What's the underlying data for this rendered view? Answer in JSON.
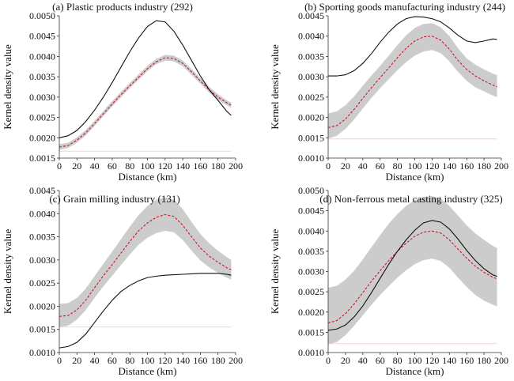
{
  "colors": {
    "band": "#cccccc",
    "observed": "#111111",
    "expected": "#d0021b",
    "axis": "#333333"
  },
  "chart_data": [
    {
      "type": "line",
      "title": "(a) Plastic products industry (292)",
      "xlabel": "Distance (km)",
      "ylabel": "Kernel density value",
      "xlim": [
        0,
        200
      ],
      "ylim": [
        0.0015,
        0.005
      ],
      "xticks": [
        "0",
        "20",
        "40",
        "60",
        "80",
        "100",
        "120",
        "140",
        "160",
        "180",
        "200"
      ],
      "yticks": [
        "0.0015",
        "0.0020",
        "0.0025",
        "0.0030",
        "0.0035",
        "0.0040",
        "0.0045",
        "0.0050"
      ],
      "grid": false,
      "x": [
        0,
        10,
        20,
        30,
        40,
        50,
        60,
        70,
        80,
        90,
        100,
        110,
        120,
        130,
        140,
        150,
        160,
        170,
        180,
        190,
        195
      ],
      "observed": [
        0.002,
        0.00205,
        0.00218,
        0.0024,
        0.00268,
        0.003,
        0.00336,
        0.00374,
        0.00412,
        0.00446,
        0.00474,
        0.00488,
        0.00485,
        0.00462,
        0.00428,
        0.0039,
        0.00352,
        0.00318,
        0.00292,
        0.00265,
        0.00255
      ],
      "expected": [
        0.00177,
        0.00181,
        0.00194,
        0.00212,
        0.00235,
        0.00259,
        0.00283,
        0.00306,
        0.00328,
        0.00349,
        0.0037,
        0.00387,
        0.00397,
        0.00395,
        0.00383,
        0.00362,
        0.0034,
        0.00318,
        0.003,
        0.00286,
        0.0028
      ],
      "band_lower": [
        0.0017,
        0.00175,
        0.00188,
        0.00206,
        0.00229,
        0.00253,
        0.00277,
        0.003,
        0.00322,
        0.00343,
        0.00364,
        0.00381,
        0.0039,
        0.00388,
        0.00376,
        0.00355,
        0.00333,
        0.00311,
        0.00293,
        0.0028,
        0.00274
      ],
      "band_upper": [
        0.00184,
        0.00188,
        0.00201,
        0.00219,
        0.00242,
        0.00266,
        0.0029,
        0.00313,
        0.00335,
        0.00356,
        0.00377,
        0.00394,
        0.00404,
        0.00402,
        0.0039,
        0.00369,
        0.00347,
        0.00325,
        0.00307,
        0.00292,
        0.00286
      ],
      "baseline": 0.00167
    },
    {
      "type": "line",
      "title": "(b) Sporting goods manufacturing industry (244)",
      "xlabel": "Distance (km)",
      "ylabel": "Kernel density value",
      "xlim": [
        0,
        200
      ],
      "ylim": [
        0.001,
        0.0045
      ],
      "xticks": [
        "0",
        "20",
        "40",
        "60",
        "80",
        "100",
        "120",
        "140",
        "160",
        "180",
        "200"
      ],
      "yticks": [
        "0.0010",
        "0.0015",
        "0.0020",
        "0.0025",
        "0.0030",
        "0.0035",
        "0.0040",
        "0.0045"
      ],
      "grid": false,
      "x": [
        0,
        10,
        20,
        30,
        40,
        50,
        60,
        70,
        80,
        90,
        100,
        110,
        120,
        130,
        140,
        150,
        160,
        170,
        180,
        190,
        195
      ],
      "observed": [
        0.00302,
        0.00302,
        0.00305,
        0.00315,
        0.00333,
        0.00357,
        0.00385,
        0.0041,
        0.0043,
        0.00443,
        0.00448,
        0.00447,
        0.00443,
        0.00435,
        0.0042,
        0.00402,
        0.00388,
        0.00384,
        0.00388,
        0.00393,
        0.00392
      ],
      "expected": [
        0.00175,
        0.0018,
        0.00196,
        0.0022,
        0.00247,
        0.00273,
        0.00298,
        0.00322,
        0.00347,
        0.0037,
        0.00388,
        0.00398,
        0.004,
        0.0039,
        0.00368,
        0.0034,
        0.00318,
        0.00302,
        0.0029,
        0.0028,
        0.00275
      ],
      "band_lower": [
        0.00148,
        0.00155,
        0.00172,
        0.00195,
        0.00222,
        0.00248,
        0.00272,
        0.00294,
        0.00316,
        0.00336,
        0.00352,
        0.00362,
        0.00366,
        0.00358,
        0.00338,
        0.00312,
        0.0029,
        0.00274,
        0.00264,
        0.00254,
        0.0025
      ],
      "band_upper": [
        0.0021,
        0.00215,
        0.0023,
        0.00252,
        0.00278,
        0.00303,
        0.00327,
        0.00352,
        0.00378,
        0.00402,
        0.0042,
        0.0043,
        0.00432,
        0.00422,
        0.004,
        0.0037,
        0.00345,
        0.0033,
        0.00318,
        0.00308,
        0.00304
      ],
      "baseline": 0.00147
    },
    {
      "type": "line",
      "title": "(c) Grain milling industry (131)",
      "xlabel": "Distance (km)",
      "ylabel": "Kernel density value",
      "xlim": [
        0,
        200
      ],
      "ylim": [
        0.001,
        0.0045
      ],
      "xticks": [
        "0",
        "20",
        "40",
        "60",
        "80",
        "100",
        "120",
        "140",
        "160",
        "180",
        "200"
      ],
      "yticks": [
        "0.0010",
        "0.0015",
        "0.0020",
        "0.0025",
        "0.0030",
        "0.0035",
        "0.0040",
        "0.0045"
      ],
      "grid": false,
      "x": [
        0,
        10,
        20,
        30,
        40,
        50,
        60,
        70,
        80,
        90,
        100,
        110,
        120,
        130,
        140,
        150,
        160,
        170,
        180,
        190,
        195
      ],
      "observed": [
        0.0011,
        0.00113,
        0.00122,
        0.0014,
        0.00165,
        0.0019,
        0.00213,
        0.00232,
        0.00245,
        0.00255,
        0.00262,
        0.00265,
        0.00267,
        0.00268,
        0.00269,
        0.0027,
        0.00271,
        0.00271,
        0.00271,
        0.00269,
        0.00267
      ],
      "expected": [
        0.00178,
        0.0018,
        0.00192,
        0.00213,
        0.0024,
        0.00266,
        0.0029,
        0.00315,
        0.0034,
        0.00363,
        0.0038,
        0.00392,
        0.00398,
        0.00394,
        0.00375,
        0.0035,
        0.00326,
        0.00308,
        0.00295,
        0.00283,
        0.00279
      ],
      "band_lower": [
        0.00155,
        0.00158,
        0.00171,
        0.00192,
        0.00218,
        0.00243,
        0.00266,
        0.00289,
        0.00312,
        0.00333,
        0.00348,
        0.00358,
        0.00363,
        0.0036,
        0.00343,
        0.0032,
        0.00299,
        0.00284,
        0.00272,
        0.00262,
        0.00258
      ],
      "band_upper": [
        0.00205,
        0.00207,
        0.00218,
        0.00238,
        0.00265,
        0.00292,
        0.00318,
        0.00345,
        0.00372,
        0.00397,
        0.00417,
        0.0043,
        0.00435,
        0.0043,
        0.0041,
        0.00382,
        0.00356,
        0.00336,
        0.0032,
        0.00306,
        0.003
      ],
      "baseline": 0.00155
    },
    {
      "type": "line",
      "title": "(d) Non-ferrous metal casting industry (325)",
      "xlabel": "Distance (km)",
      "ylabel": "Kernel density value",
      "xlim": [
        0,
        200
      ],
      "ylim": [
        0.001,
        0.005
      ],
      "xticks": [
        "0",
        "20",
        "40",
        "60",
        "80",
        "100",
        "120",
        "140",
        "160",
        "180",
        "200"
      ],
      "yticks": [
        "0.0010",
        "0.0015",
        "0.0020",
        "0.0025",
        "0.0030",
        "0.0035",
        "0.0040",
        "0.0045",
        "0.0050"
      ],
      "grid": false,
      "x": [
        0,
        10,
        20,
        30,
        40,
        50,
        60,
        70,
        80,
        90,
        100,
        110,
        120,
        130,
        140,
        150,
        160,
        170,
        180,
        190,
        195
      ],
      "observed": [
        0.00155,
        0.00158,
        0.00168,
        0.00188,
        0.00215,
        0.00248,
        0.00283,
        0.00318,
        0.0035,
        0.00378,
        0.00402,
        0.0042,
        0.00426,
        0.00422,
        0.00405,
        0.0038,
        0.00352,
        0.00327,
        0.00307,
        0.00292,
        0.00288
      ],
      "expected": [
        0.00173,
        0.00179,
        0.00196,
        0.0022,
        0.00248,
        0.00276,
        0.00302,
        0.00327,
        0.0035,
        0.0037,
        0.00387,
        0.00397,
        0.004,
        0.00395,
        0.00378,
        0.00355,
        0.00333,
        0.00313,
        0.00298,
        0.00286,
        0.00282
      ],
      "band_lower": [
        0.0012,
        0.00126,
        0.00143,
        0.00166,
        0.00192,
        0.00218,
        0.00242,
        0.00264,
        0.00285,
        0.00303,
        0.00318,
        0.00328,
        0.00332,
        0.00326,
        0.00309,
        0.00285,
        0.00262,
        0.00242,
        0.00228,
        0.00218,
        0.00214
      ],
      "band_upper": [
        0.0026,
        0.00265,
        0.0028,
        0.00302,
        0.0033,
        0.0036,
        0.0039,
        0.00418,
        0.00442,
        0.00462,
        0.00476,
        0.00484,
        0.00486,
        0.0048,
        0.00462,
        0.00438,
        0.00414,
        0.00394,
        0.00378,
        0.00364,
        0.00358
      ],
      "baseline": 0.00122
    }
  ]
}
